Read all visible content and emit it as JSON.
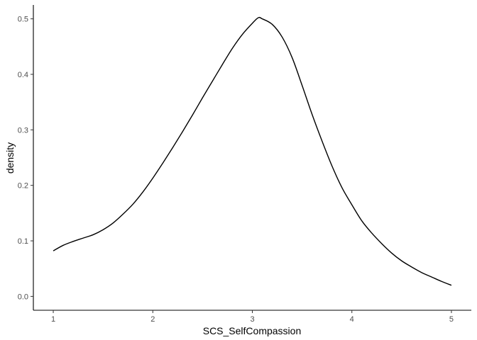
{
  "chart_data": {
    "type": "line",
    "title": "",
    "xlabel": "SCS_SelfCompassion",
    "ylabel": "density",
    "xlim": [
      0.8,
      5.2
    ],
    "ylim": [
      -0.025,
      0.525
    ],
    "x_ticks": [
      {
        "value": 1,
        "label": "1"
      },
      {
        "value": 2,
        "label": "2"
      },
      {
        "value": 3,
        "label": "3"
      },
      {
        "value": 4,
        "label": "4"
      },
      {
        "value": 5,
        "label": "5"
      }
    ],
    "y_ticks": [
      {
        "value": 0.0,
        "label": "0.0"
      },
      {
        "value": 0.1,
        "label": "0.1"
      },
      {
        "value": 0.2,
        "label": "0.2"
      },
      {
        "value": 0.3,
        "label": "0.3"
      },
      {
        "value": 0.4,
        "label": "0.4"
      },
      {
        "value": 0.5,
        "label": "0.5"
      }
    ],
    "grid": false,
    "legend": "none",
    "series": [
      {
        "color": "#000000",
        "x": [
          1.0,
          1.1,
          1.2,
          1.3,
          1.4,
          1.5,
          1.6,
          1.7,
          1.8,
          1.9,
          2.0,
          2.1,
          2.2,
          2.3,
          2.4,
          2.5,
          2.6,
          2.7,
          2.8,
          2.9,
          3.0,
          3.06,
          3.1,
          3.2,
          3.3,
          3.4,
          3.5,
          3.6,
          3.7,
          3.8,
          3.9,
          4.0,
          4.1,
          4.2,
          4.3,
          4.4,
          4.5,
          4.6,
          4.7,
          4.8,
          4.9,
          5.0
        ],
        "y": [
          0.082,
          0.092,
          0.099,
          0.105,
          0.111,
          0.12,
          0.132,
          0.148,
          0.166,
          0.188,
          0.213,
          0.24,
          0.268,
          0.297,
          0.327,
          0.358,
          0.388,
          0.418,
          0.447,
          0.472,
          0.492,
          0.502,
          0.5,
          0.49,
          0.467,
          0.43,
          0.38,
          0.328,
          0.28,
          0.235,
          0.196,
          0.165,
          0.136,
          0.114,
          0.095,
          0.078,
          0.064,
          0.053,
          0.043,
          0.035,
          0.027,
          0.02
        ]
      }
    ]
  }
}
